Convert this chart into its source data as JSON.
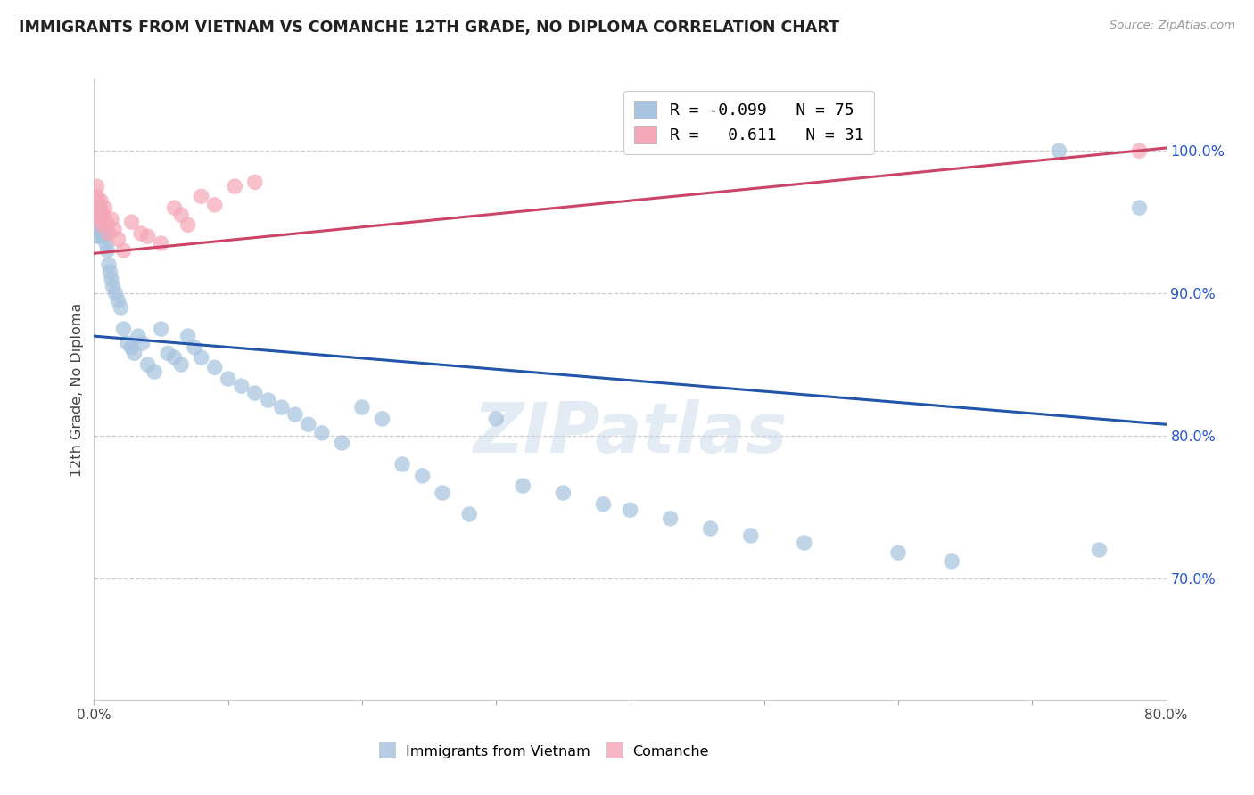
{
  "title": "IMMIGRANTS FROM VIETNAM VS COMANCHE 12TH GRADE, NO DIPLOMA CORRELATION CHART",
  "source": "Source: ZipAtlas.com",
  "ylabel": "12th Grade, No Diploma",
  "ytick_labels": [
    "100.0%",
    "90.0%",
    "80.0%",
    "70.0%"
  ],
  "ytick_values": [
    1.0,
    0.9,
    0.8,
    0.7
  ],
  "xlim": [
    0.0,
    0.8
  ],
  "ylim": [
    0.615,
    1.05
  ],
  "legend_blue_r": "-0.099",
  "legend_blue_n": "75",
  "legend_pink_r": "0.611",
  "legend_pink_n": "31",
  "blue_color": "#a8c4e0",
  "pink_color": "#f4a8b8",
  "blue_line_color": "#2255aa",
  "pink_line_color": "#cc4466",
  "watermark": "ZIPatlas",
  "blue_points_x": [
    0.001,
    0.001,
    0.001,
    0.002,
    0.002,
    0.002,
    0.002,
    0.003,
    0.003,
    0.003,
    0.003,
    0.004,
    0.004,
    0.004,
    0.005,
    0.005,
    0.006,
    0.006,
    0.007,
    0.007,
    0.008,
    0.009,
    0.01,
    0.011,
    0.012,
    0.013,
    0.014,
    0.016,
    0.018,
    0.02,
    0.022,
    0.025,
    0.028,
    0.03,
    0.033,
    0.036,
    0.04,
    0.045,
    0.05,
    0.055,
    0.06,
    0.065,
    0.07,
    0.075,
    0.08,
    0.09,
    0.1,
    0.11,
    0.12,
    0.13,
    0.14,
    0.15,
    0.16,
    0.17,
    0.185,
    0.2,
    0.215,
    0.23,
    0.245,
    0.26,
    0.28,
    0.3,
    0.32,
    0.35,
    0.38,
    0.4,
    0.43,
    0.46,
    0.49,
    0.53,
    0.6,
    0.64,
    0.72,
    0.75,
    0.78
  ],
  "blue_points_y": [
    0.955,
    0.95,
    0.945,
    0.96,
    0.955,
    0.95,
    0.945,
    0.955,
    0.95,
    0.945,
    0.94,
    0.96,
    0.955,
    0.94,
    0.955,
    0.945,
    0.952,
    0.946,
    0.95,
    0.942,
    0.94,
    0.935,
    0.93,
    0.92,
    0.915,
    0.91,
    0.905,
    0.9,
    0.895,
    0.89,
    0.875,
    0.865,
    0.862,
    0.858,
    0.87,
    0.865,
    0.85,
    0.845,
    0.875,
    0.858,
    0.855,
    0.85,
    0.87,
    0.862,
    0.855,
    0.848,
    0.84,
    0.835,
    0.83,
    0.825,
    0.82,
    0.815,
    0.808,
    0.802,
    0.795,
    0.82,
    0.812,
    0.78,
    0.772,
    0.76,
    0.745,
    0.812,
    0.765,
    0.76,
    0.752,
    0.748,
    0.742,
    0.735,
    0.73,
    0.725,
    0.718,
    0.712,
    1.0,
    0.72,
    0.96
  ],
  "pink_points_x": [
    0.001,
    0.001,
    0.002,
    0.002,
    0.003,
    0.003,
    0.004,
    0.005,
    0.005,
    0.006,
    0.007,
    0.008,
    0.009,
    0.01,
    0.011,
    0.013,
    0.015,
    0.018,
    0.022,
    0.028,
    0.035,
    0.04,
    0.05,
    0.06,
    0.065,
    0.07,
    0.08,
    0.09,
    0.105,
    0.12,
    0.78
  ],
  "pink_points_y": [
    0.96,
    0.955,
    0.975,
    0.968,
    0.965,
    0.958,
    0.952,
    0.965,
    0.958,
    0.948,
    0.955,
    0.96,
    0.95,
    0.948,
    0.942,
    0.952,
    0.945,
    0.938,
    0.93,
    0.95,
    0.942,
    0.94,
    0.935,
    0.96,
    0.955,
    0.948,
    0.968,
    0.962,
    0.975,
    0.978,
    1.0
  ],
  "blue_trendline_x": [
    0.0,
    0.8
  ],
  "blue_trendline_y": [
    0.87,
    0.808
  ],
  "pink_trendline_x": [
    0.0,
    0.8
  ],
  "pink_trendline_y": [
    0.928,
    1.002
  ]
}
